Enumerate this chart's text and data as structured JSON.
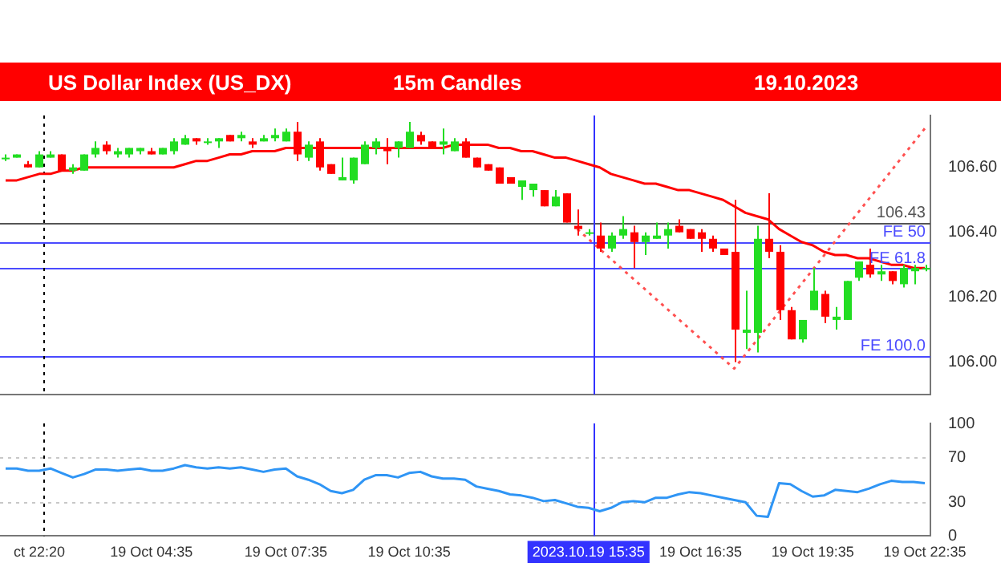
{
  "chart_data": [
    {
      "type": "candlestick",
      "title": "US Dollar Index (US_DX)",
      "subtitle": "15m Candles",
      "annotations": [
        "19.10.2023"
      ],
      "marker": "none",
      "tick_labels": "y",
      "categories": [
        null,
        null,
        null,
        "ct 22:20",
        null,
        null,
        null,
        null,
        null,
        null,
        null,
        null,
        null,
        "19 Oct 04:35",
        null,
        null,
        null,
        null,
        null,
        null,
        null,
        null,
        null,
        null,
        null,
        "19 Oct 07:35",
        null,
        null,
        null,
        null,
        null,
        null,
        null,
        null,
        null,
        null,
        "19 Oct 10:35",
        null,
        null,
        null,
        null,
        null,
        null,
        null,
        null,
        null,
        null,
        null,
        null,
        null,
        null,
        null,
        "2023.10.19 15:35",
        null,
        null,
        null,
        null,
        null,
        null,
        null,
        null,
        null,
        "19 Oct 16:35",
        null,
        null,
        null,
        null,
        null,
        null,
        null,
        null,
        null,
        "19 Oct 19:35",
        null,
        null,
        null,
        null,
        null,
        null,
        null,
        null,
        null,
        "19 Oct 22:35"
      ],
      "ylim": [
        105.9,
        106.76
      ],
      "yticks": [
        {
          "value": 106,
          "label": "106.00"
        },
        {
          "value": 106.2,
          "label": "106.20"
        },
        {
          "value": 106.4,
          "label": "106.40"
        },
        {
          "value": 106.6,
          "label": "106.60"
        }
      ],
      "series": [
        {
          "type": "line",
          "color": "#ff0000",
          "values": [
            106.56,
            106.56,
            106.57,
            106.58,
            106.58,
            106.59,
            106.59,
            106.6,
            106.6,
            106.6,
            106.6,
            106.6,
            106.6,
            106.6,
            106.6,
            106.6,
            106.61,
            106.62,
            106.62,
            106.63,
            106.64,
            106.64,
            106.65,
            106.65,
            106.65,
            106.66,
            106.66,
            106.66,
            106.66,
            106.66,
            106.66,
            106.66,
            106.66,
            106.66,
            106.66,
            106.66,
            106.66,
            106.66,
            106.66,
            106.66,
            106.67,
            106.67,
            106.67,
            106.67,
            106.66,
            106.66,
            106.65,
            106.65,
            106.64,
            106.63,
            106.63,
            106.62,
            106.61,
            106.6,
            106.58,
            106.57,
            106.56,
            106.55,
            106.55,
            106.54,
            106.53,
            106.53,
            106.52,
            106.51,
            106.5,
            106.48,
            106.46,
            106.45,
            106.44,
            106.41,
            106.39,
            106.37,
            106.36,
            106.34,
            106.33,
            106.33,
            106.32,
            106.32,
            106.31,
            106.3,
            106.3,
            106.29,
            106.29
          ]
        },
        {
          "type": "line",
          "color": "#ff5050",
          "line_style": "dotted",
          "values": [
            null,
            null,
            null,
            null,
            null,
            null,
            null,
            null,
            null,
            null,
            null,
            null,
            null,
            null,
            null,
            null,
            null,
            null,
            null,
            null,
            null,
            null,
            null,
            null,
            null,
            null,
            null,
            null,
            null,
            null,
            null,
            null,
            null,
            null,
            null,
            null,
            null,
            null,
            null,
            null,
            null,
            null,
            null,
            null,
            null,
            null,
            null,
            null,
            null,
            null,
            null,
            106.41,
            null,
            null,
            null,
            null,
            null,
            null,
            null,
            null,
            null,
            null,
            null,
            null,
            null,
            105.98,
            null,
            null,
            null,
            null,
            null,
            null,
            null,
            null,
            null,
            null,
            null,
            null,
            null,
            null,
            null,
            null,
            106.72
          ]
        },
        {
          "colors": [
            "#22dd22",
            "#22dd22",
            "#ff0000",
            "#22dd22",
            "#22dd22",
            "#ff0000",
            "#22dd22",
            "#22dd22",
            "#22dd22",
            "#ff0000",
            "#22dd22",
            "#22dd22",
            "#22dd22",
            "#ff0000",
            "#22dd22",
            "#22dd22",
            "#22dd22",
            "#ff0000",
            "#22dd22",
            "#22dd22",
            "#ff0000",
            "#22dd22",
            "#ff0000",
            "#22dd22",
            "#22dd22",
            "#22dd22",
            "#ff0000",
            "#22dd22",
            "#ff0000",
            "#ff0000",
            "#22dd22",
            "#22dd22",
            "#22dd22",
            "#22dd22",
            "#ff0000",
            "#22dd22",
            "#22dd22",
            "#ff0000",
            "#ff0000",
            "#22dd22",
            "#22dd22",
            "#ff0000",
            "#ff0000",
            "#ff0000",
            "#ff0000",
            "#ff0000",
            "#22dd22",
            "#22dd22",
            "#ff0000",
            "#22dd22",
            "#ff0000",
            "#ff0000",
            "#22dd22",
            "#ff0000",
            "#22dd22",
            "#22dd22",
            "#ff0000",
            "#22dd22",
            "#22dd22",
            "#22dd22",
            "#ff0000",
            "#ff0000",
            "#ff0000",
            "#ff0000",
            "#ff0000",
            "#ff0000",
            "#22dd22",
            "#22dd22",
            "#ff0000",
            "#ff0000",
            "#ff0000",
            "#22dd22",
            "#22dd22",
            "#ff0000",
            "#22dd22",
            "#22dd22",
            "#22dd22",
            "#ff0000",
            "#22dd22",
            "#ff0000",
            "#22dd22",
            "#22dd22",
            "#22dd22"
          ],
          "ohlc": [
            [
              106.63,
              106.64,
              106.62,
              106.63
            ],
            [
              106.63,
              106.64,
              106.63,
              106.64
            ],
            [
              106.61,
              106.62,
              106.6,
              106.6
            ],
            [
              106.6,
              106.65,
              106.6,
              106.64
            ],
            [
              106.63,
              106.65,
              106.63,
              106.64
            ],
            [
              106.64,
              106.64,
              106.59,
              106.59
            ],
            [
              106.59,
              106.61,
              106.58,
              106.6
            ],
            [
              106.59,
              106.64,
              106.59,
              106.64
            ],
            [
              106.64,
              106.68,
              106.63,
              106.66
            ],
            [
              106.67,
              106.68,
              106.64,
              106.65
            ],
            [
              106.64,
              106.66,
              106.63,
              106.65
            ],
            [
              106.64,
              106.66,
              106.63,
              106.66
            ],
            [
              106.65,
              106.66,
              106.64,
              106.66
            ],
            [
              106.65,
              106.66,
              106.64,
              106.64
            ],
            [
              106.64,
              106.66,
              106.64,
              106.66
            ],
            [
              106.65,
              106.69,
              106.64,
              106.68
            ],
            [
              106.67,
              106.7,
              106.67,
              106.69
            ],
            [
              106.69,
              106.69,
              106.67,
              106.68
            ],
            [
              106.68,
              106.69,
              106.67,
              106.68
            ],
            [
              106.68,
              106.69,
              106.66,
              106.69
            ],
            [
              106.7,
              106.7,
              106.68,
              106.68
            ],
            [
              106.69,
              106.71,
              106.68,
              106.7
            ],
            [
              106.68,
              106.69,
              106.66,
              106.67
            ],
            [
              106.68,
              106.7,
              106.68,
              106.69
            ],
            [
              106.69,
              106.72,
              106.68,
              106.7
            ],
            [
              106.68,
              106.72,
              106.68,
              106.71
            ],
            [
              106.71,
              106.74,
              106.62,
              106.64
            ],
            [
              106.63,
              106.68,
              106.62,
              106.67
            ],
            [
              106.68,
              106.69,
              106.59,
              106.6
            ],
            [
              106.61,
              106.61,
              106.58,
              106.58
            ],
            [
              106.56,
              106.63,
              106.56,
              106.57
            ],
            [
              106.56,
              106.63,
              106.55,
              106.63
            ],
            [
              106.61,
              106.68,
              106.61,
              106.67
            ],
            [
              106.66,
              106.69,
              106.64,
              106.68
            ],
            [
              106.66,
              106.69,
              106.61,
              106.65
            ],
            [
              106.66,
              106.68,
              106.63,
              106.68
            ],
            [
              106.66,
              106.74,
              106.66,
              106.71
            ],
            [
              106.7,
              106.71,
              106.67,
              106.68
            ],
            [
              106.68,
              106.68,
              106.66,
              106.66
            ],
            [
              106.67,
              106.72,
              106.64,
              106.68
            ],
            [
              106.65,
              106.69,
              106.65,
              106.68
            ],
            [
              106.68,
              106.69,
              106.63,
              106.63
            ],
            [
              106.63,
              106.63,
              106.6,
              106.6
            ],
            [
              106.61,
              106.61,
              106.59,
              106.59
            ],
            [
              106.6,
              106.6,
              106.55,
              106.55
            ],
            [
              106.57,
              106.57,
              106.55,
              106.55
            ],
            [
              106.54,
              106.56,
              106.5,
              106.56
            ],
            [
              106.53,
              106.55,
              106.51,
              106.55
            ],
            [
              106.53,
              106.53,
              106.48,
              106.48
            ],
            [
              106.48,
              106.53,
              106.48,
              106.51
            ],
            [
              106.52,
              106.52,
              106.43,
              106.43
            ],
            [
              106.42,
              106.47,
              106.39,
              106.41
            ],
            [
              106.4,
              106.41,
              106.39,
              106.4
            ],
            [
              106.39,
              106.43,
              106.34,
              106.35
            ],
            [
              106.35,
              106.4,
              106.34,
              106.39
            ],
            [
              106.39,
              106.45,
              106.38,
              106.41
            ],
            [
              106.4,
              106.42,
              106.29,
              106.37
            ],
            [
              106.37,
              106.4,
              106.33,
              106.39
            ],
            [
              106.38,
              106.43,
              106.38,
              106.39
            ],
            [
              106.39,
              106.43,
              106.35,
              106.41
            ],
            [
              106.42,
              106.44,
              106.4,
              106.4
            ],
            [
              106.41,
              106.41,
              106.38,
              106.38
            ],
            [
              106.4,
              106.41,
              106.34,
              106.38
            ],
            [
              106.38,
              106.39,
              106.34,
              106.35
            ],
            [
              106.35,
              106.35,
              106.33,
              106.33
            ],
            [
              106.34,
              106.5,
              106,
              106.1
            ],
            [
              106.09,
              106.22,
              106.04,
              106.1
            ],
            [
              106.09,
              106.42,
              106.03,
              106.38
            ],
            [
              106.38,
              106.52,
              106.32,
              106.34
            ],
            [
              106.34,
              106.36,
              106.13,
              106.16
            ],
            [
              106.16,
              106.17,
              106.07,
              106.07
            ],
            [
              106.07,
              106.13,
              106.06,
              106.13
            ],
            [
              106.16,
              106.29,
              106.16,
              106.22
            ],
            [
              106.21,
              106.22,
              106.12,
              106.14
            ],
            [
              106.13,
              106.17,
              106.1,
              106.14
            ],
            [
              106.13,
              106.25,
              106.13,
              106.25
            ],
            [
              106.26,
              106.31,
              106.25,
              106.31
            ],
            [
              106.3,
              106.35,
              106.26,
              106.27
            ],
            [
              106.27,
              106.3,
              106.25,
              106.28
            ],
            [
              106.28,
              106.28,
              106.24,
              106.25
            ],
            [
              106.24,
              106.3,
              106.23,
              106.29
            ],
            [
              106.28,
              106.3,
              106.24,
              106.29
            ],
            [
              106.29,
              106.3,
              106.28,
              106.29
            ]
          ]
        }
      ],
      "ref_lines": [
        {
          "axis": "y",
          "value": 106.43,
          "label": "106.43",
          "color": "#555555"
        },
        {
          "axis": "y",
          "value": 106.37,
          "label": "FE 50",
          "color": "#4a4aff"
        },
        {
          "axis": "y",
          "value": 106.29,
          "label": "FE 61.8",
          "color": "#4a4aff"
        },
        {
          "axis": "y",
          "value": 106.02,
          "label": "FE 100.0",
          "color": "#4a4aff"
        },
        {
          "axis": "x",
          "value": "ct 22:20",
          "color": "#000000",
          "line_style": "dotted"
        },
        {
          "axis": "x",
          "value": "2023.10.19 15:35",
          "color": "#3333ff"
        }
      ]
    },
    {
      "type": "line",
      "marker": "none",
      "ylim": [
        0,
        100
      ],
      "yticks": [
        0,
        30,
        70,
        100
      ],
      "categories": [
        null,
        null,
        null,
        "ct 22:20",
        null,
        null,
        null,
        null,
        null,
        null,
        null,
        null,
        null,
        "19 Oct 04:35",
        null,
        null,
        null,
        null,
        null,
        null,
        null,
        null,
        null,
        null,
        null,
        "19 Oct 07:35",
        null,
        null,
        null,
        null,
        null,
        null,
        null,
        null,
        null,
        null,
        "19 Oct 10:35",
        null,
        null,
        null,
        null,
        null,
        null,
        null,
        null,
        null,
        null,
        null,
        null,
        null,
        null,
        null,
        "2023.10.19 15:35",
        null,
        null,
        null,
        null,
        null,
        null,
        null,
        null,
        null,
        "19 Oct 16:35",
        null,
        null,
        null,
        null,
        null,
        null,
        null,
        null,
        null,
        "19 Oct 19:35",
        null,
        null,
        null,
        null,
        null,
        null,
        null,
        null,
        null,
        "19 Oct 22:35"
      ],
      "series": [
        {
          "color": "#2f95f5",
          "values": [
            60,
            60,
            58,
            58,
            60,
            56,
            52,
            55,
            59,
            59,
            58,
            59,
            60,
            58,
            58,
            60,
            63,
            61,
            60,
            61,
            60,
            61,
            59,
            57,
            59,
            60,
            53,
            50,
            46,
            40,
            38,
            41,
            50,
            54,
            54,
            52,
            56,
            57,
            53,
            51,
            51,
            50,
            44,
            42,
            40,
            37,
            36,
            34,
            31,
            32,
            29,
            26,
            25,
            22,
            25,
            30,
            31,
            30,
            34,
            34,
            37,
            39,
            38,
            36,
            34,
            32,
            30,
            18,
            17,
            47,
            46,
            40,
            35,
            36,
            41,
            40,
            39,
            42,
            46,
            49,
            48,
            48,
            47
          ]
        }
      ],
      "ref_lines": [
        {
          "axis": "y",
          "value": 30,
          "color": "#c8c8c8",
          "line_style": "dotted"
        },
        {
          "axis": "y",
          "value": 70,
          "color": "#c8c8c8",
          "line_style": "dotted"
        },
        {
          "axis": "x",
          "value": "ct 22:20",
          "color": "#000000",
          "line_style": "dotted"
        },
        {
          "axis": "x",
          "value": "2023.10.19 15:35",
          "color": "#3333ff"
        }
      ]
    }
  ]
}
